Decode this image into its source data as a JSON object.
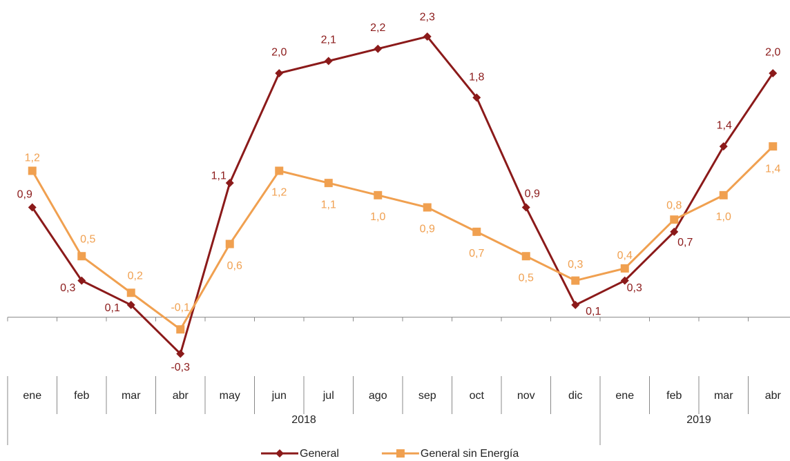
{
  "chart_data": {
    "type": "line",
    "categories": [
      "ene",
      "feb",
      "mar",
      "abr",
      "may",
      "jun",
      "jul",
      "ago",
      "sep",
      "oct",
      "nov",
      "dic",
      "ene",
      "feb",
      "mar",
      "abr"
    ],
    "groups": [
      {
        "label": "2018",
        "span": 12
      },
      {
        "label": "2019",
        "span": 4
      }
    ],
    "series": [
      {
        "name": "General",
        "color": "#8b1a1a",
        "marker": "diamond",
        "values": [
          0.9,
          0.3,
          0.1,
          -0.3,
          1.1,
          2.0,
          2.1,
          2.2,
          2.3,
          1.8,
          0.9,
          0.1,
          0.3,
          0.7,
          1.4,
          2.0
        ],
        "value_labels": [
          "0,9",
          "0,3",
          "0,1",
          "-0,3",
          "1,1",
          "2,0",
          "2,1",
          "2,2",
          "2,3",
          "1,8",
          "0,9",
          "0,1",
          "0,3",
          "0,7",
          "1,4",
          "2,0"
        ]
      },
      {
        "name": "General sin Energía",
        "color": "#f0a050",
        "marker": "square",
        "values": [
          1.2,
          0.5,
          0.2,
          -0.1,
          0.6,
          1.2,
          1.1,
          1.0,
          0.9,
          0.7,
          0.5,
          0.3,
          0.4,
          0.8,
          1.0,
          1.4
        ],
        "value_labels": [
          "1,2",
          "0,5",
          "0,2",
          "-0,1",
          "0,6",
          "1,2",
          "1,1",
          "1,0",
          "0,9",
          "0,7",
          "0,5",
          "0,3",
          "0,4",
          "0,8",
          "1,0",
          "1,4"
        ]
      }
    ],
    "ylim": [
      -0.5,
      2.6
    ],
    "legend": "bottom"
  }
}
